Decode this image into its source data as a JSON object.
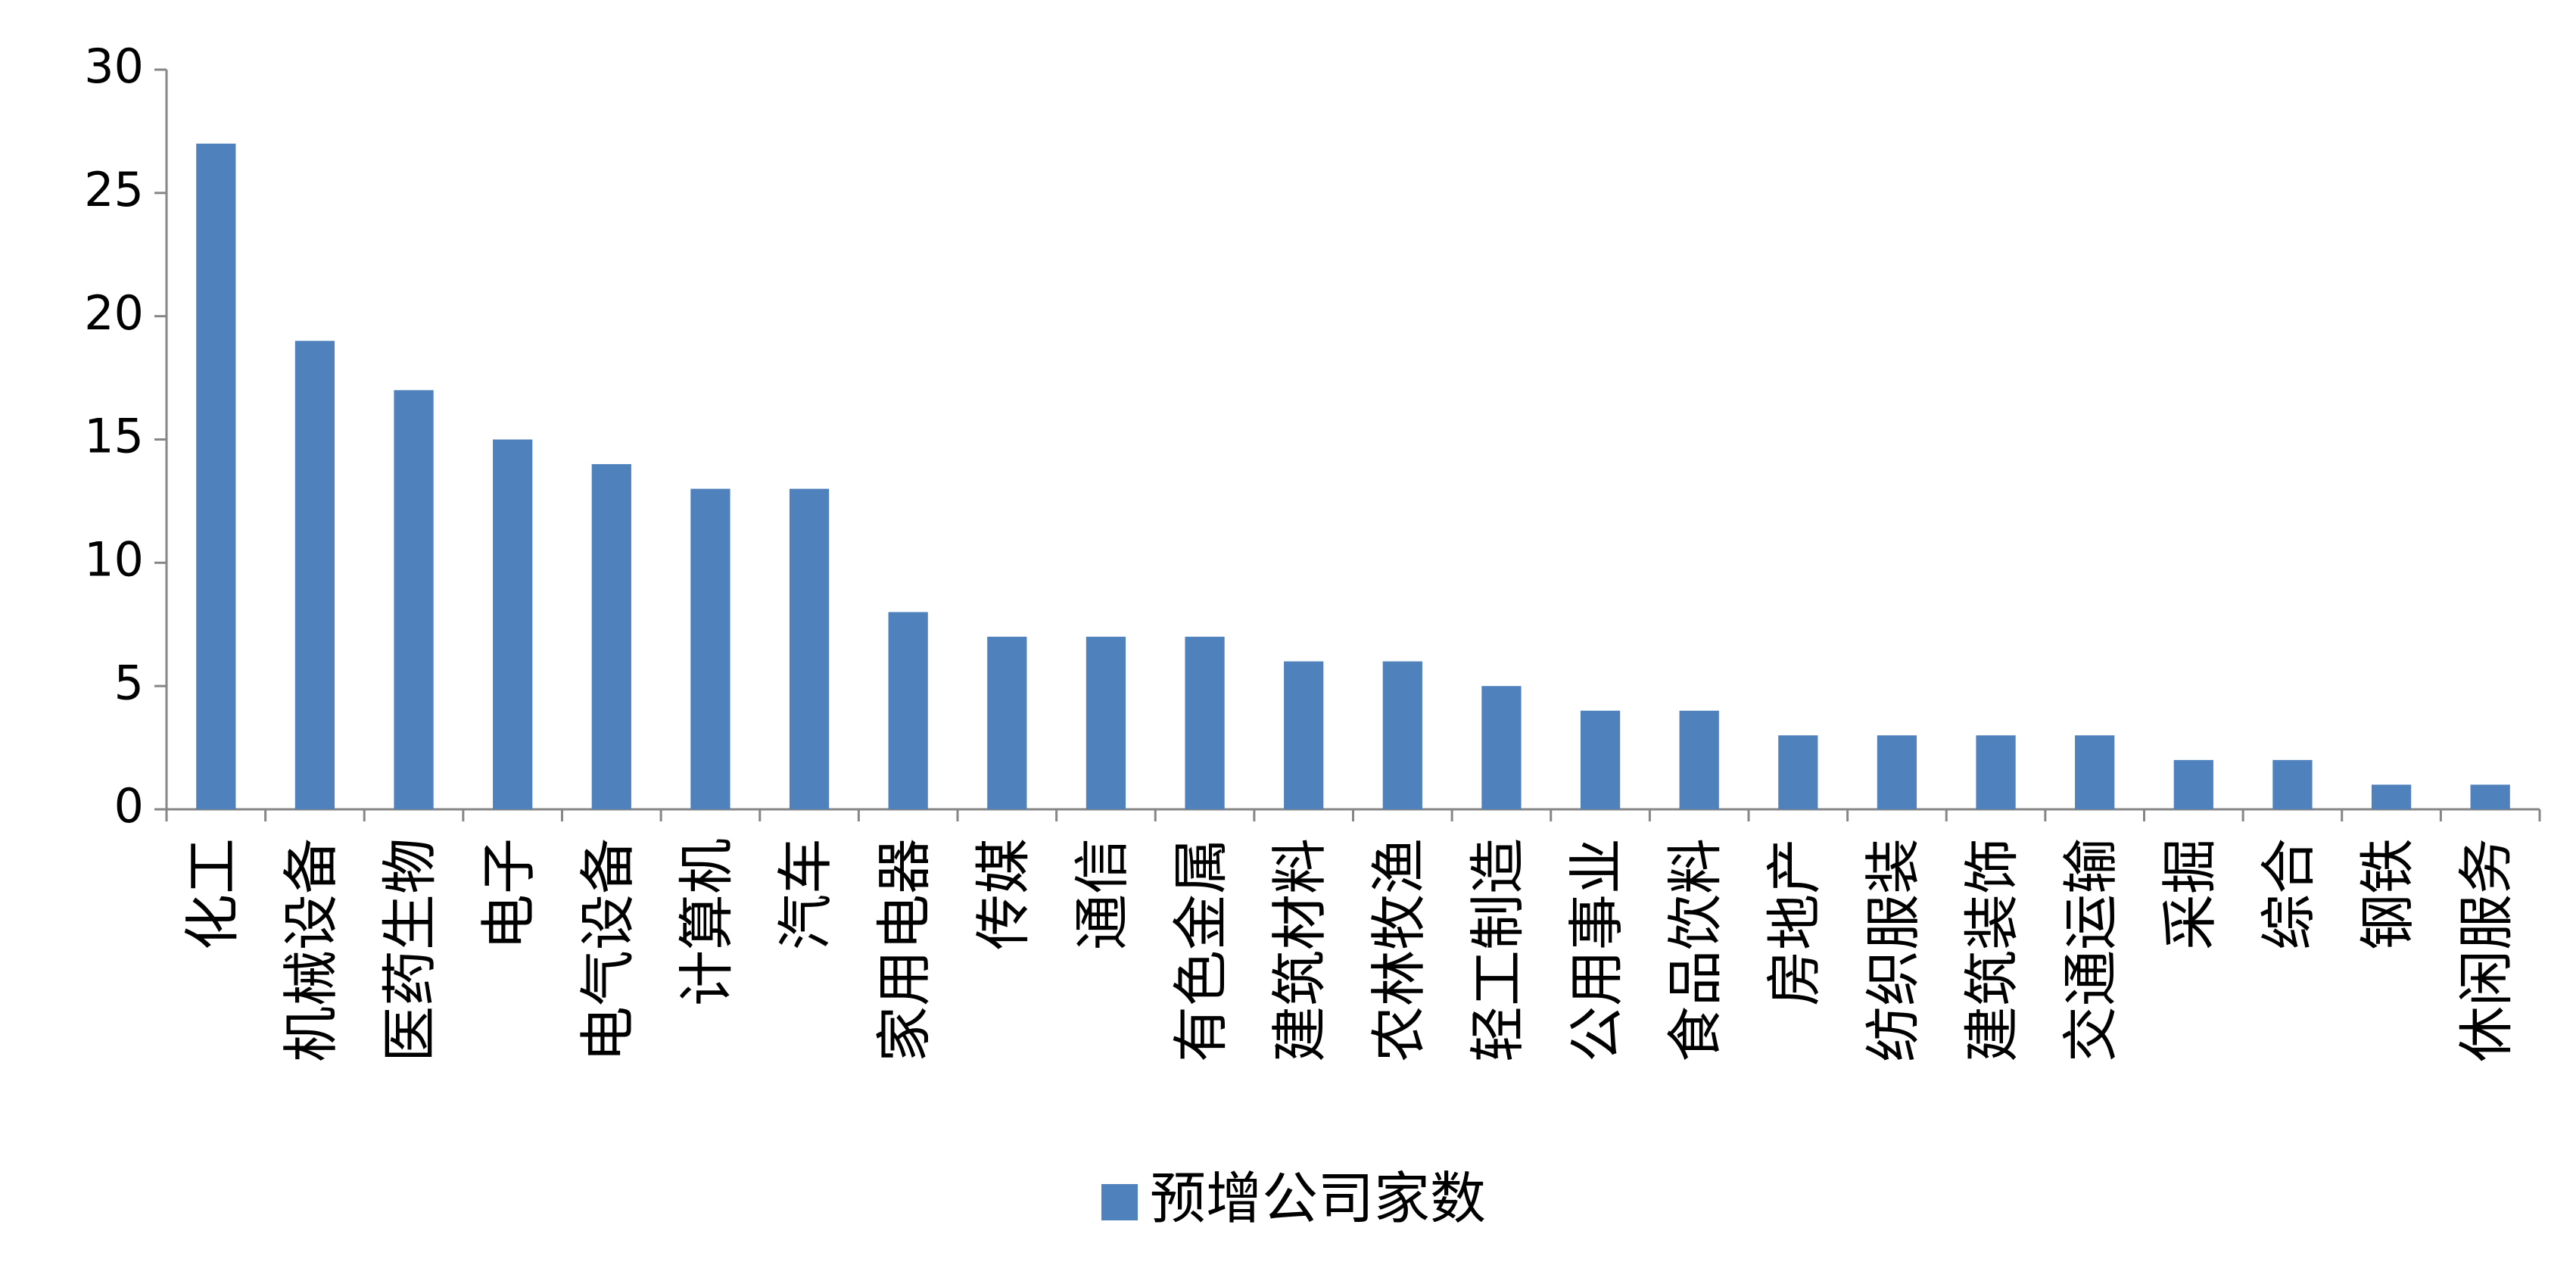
{
  "chart_data": {
    "type": "bar",
    "categories": [
      "化工",
      "机械设备",
      "医药生物",
      "电子",
      "电气设备",
      "计算机",
      "汽车",
      "家用电器",
      "传媒",
      "通信",
      "有色金属",
      "建筑材料",
      "农林牧渔",
      "轻工制造",
      "公用事业",
      "食品饮料",
      "房地产",
      "纺织服装",
      "建筑装饰",
      "交通运输",
      "采掘",
      "综合",
      "钢铁",
      "休闲服务"
    ],
    "series": [
      {
        "name": "预增公司家数",
        "color": "#4f81bd",
        "values": [
          27,
          19,
          17,
          15,
          14,
          13,
          13,
          8,
          7,
          7,
          7,
          6,
          6,
          5,
          4,
          4,
          3,
          3,
          3,
          3,
          2,
          2,
          1,
          1
        ]
      }
    ],
    "ylim": [
      0,
      30
    ],
    "yticks": [
      0,
      5,
      10,
      15,
      20,
      25,
      30
    ],
    "grid": false,
    "legend": "bottom"
  }
}
